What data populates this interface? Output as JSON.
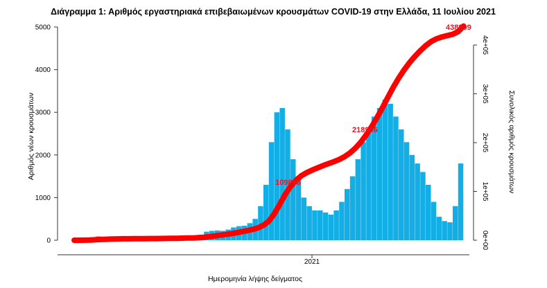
{
  "chart_data": {
    "type": "bar",
    "title": "Διάγραμμα 1: Αριθμός εργαστηριακά επιβεβαιωμένων κρουσμάτων COVID-19 στην Ελλάδα, 11 Ιουλίου 2021",
    "xlabel": "Ημερομηνία λήψης δείγματος",
    "ylabel": "Αριθμός νέων κρουσμάτων",
    "y2label": "Συνολικός αριθμός κρουσμάτων",
    "x_ticks": [
      "2021"
    ],
    "y_ticks": [
      "0",
      "1000",
      "2000",
      "3000",
      "4000",
      "5000"
    ],
    "y2_ticks": [
      "0e+00",
      "1e+05",
      "2e+05",
      "3e+05",
      "4e+05"
    ],
    "ylim": [
      0,
      5000
    ],
    "y2lim": [
      0,
      400000
    ],
    "grid": false,
    "x_start": "2020-02-26",
    "x_end": "2021-07-11",
    "bar_resolution": "weekly average of daily new cases (approx.)",
    "weeks_start": [
      "2020-02-26"
    ],
    "series": [
      {
        "kind": "bars",
        "color": "#14aee6",
        "values": [
          5,
          20,
          50,
          70,
          90,
          80,
          60,
          50,
          30,
          15,
          12,
          10,
          10,
          15,
          15,
          20,
          15,
          25,
          30,
          30,
          40,
          40,
          80,
          130,
          200,
          220,
          230,
          220,
          250,
          300,
          330,
          340,
          400,
          500,
          800,
          1300,
          2300,
          3000,
          3100,
          2600,
          1900,
          1500,
          1000,
          800,
          700,
          700,
          650,
          600,
          700,
          900,
          1200,
          1500,
          1900,
          2300,
          2600,
          2900,
          3100,
          3300,
          3200,
          2900,
          2600,
          2300,
          2000,
          1800,
          1600,
          1300,
          900,
          550,
          450,
          420,
          800,
          1800
        ]
      },
      {
        "kind": "cumulative-line",
        "color": "#ff0000",
        "axis": "right"
      }
    ],
    "annotations": [
      {
        "label": "109896",
        "color": "#e8141e"
      },
      {
        "label": "218906",
        "color": "#e8141e"
      },
      {
        "label": "438809",
        "color": "#e8141e"
      }
    ]
  }
}
